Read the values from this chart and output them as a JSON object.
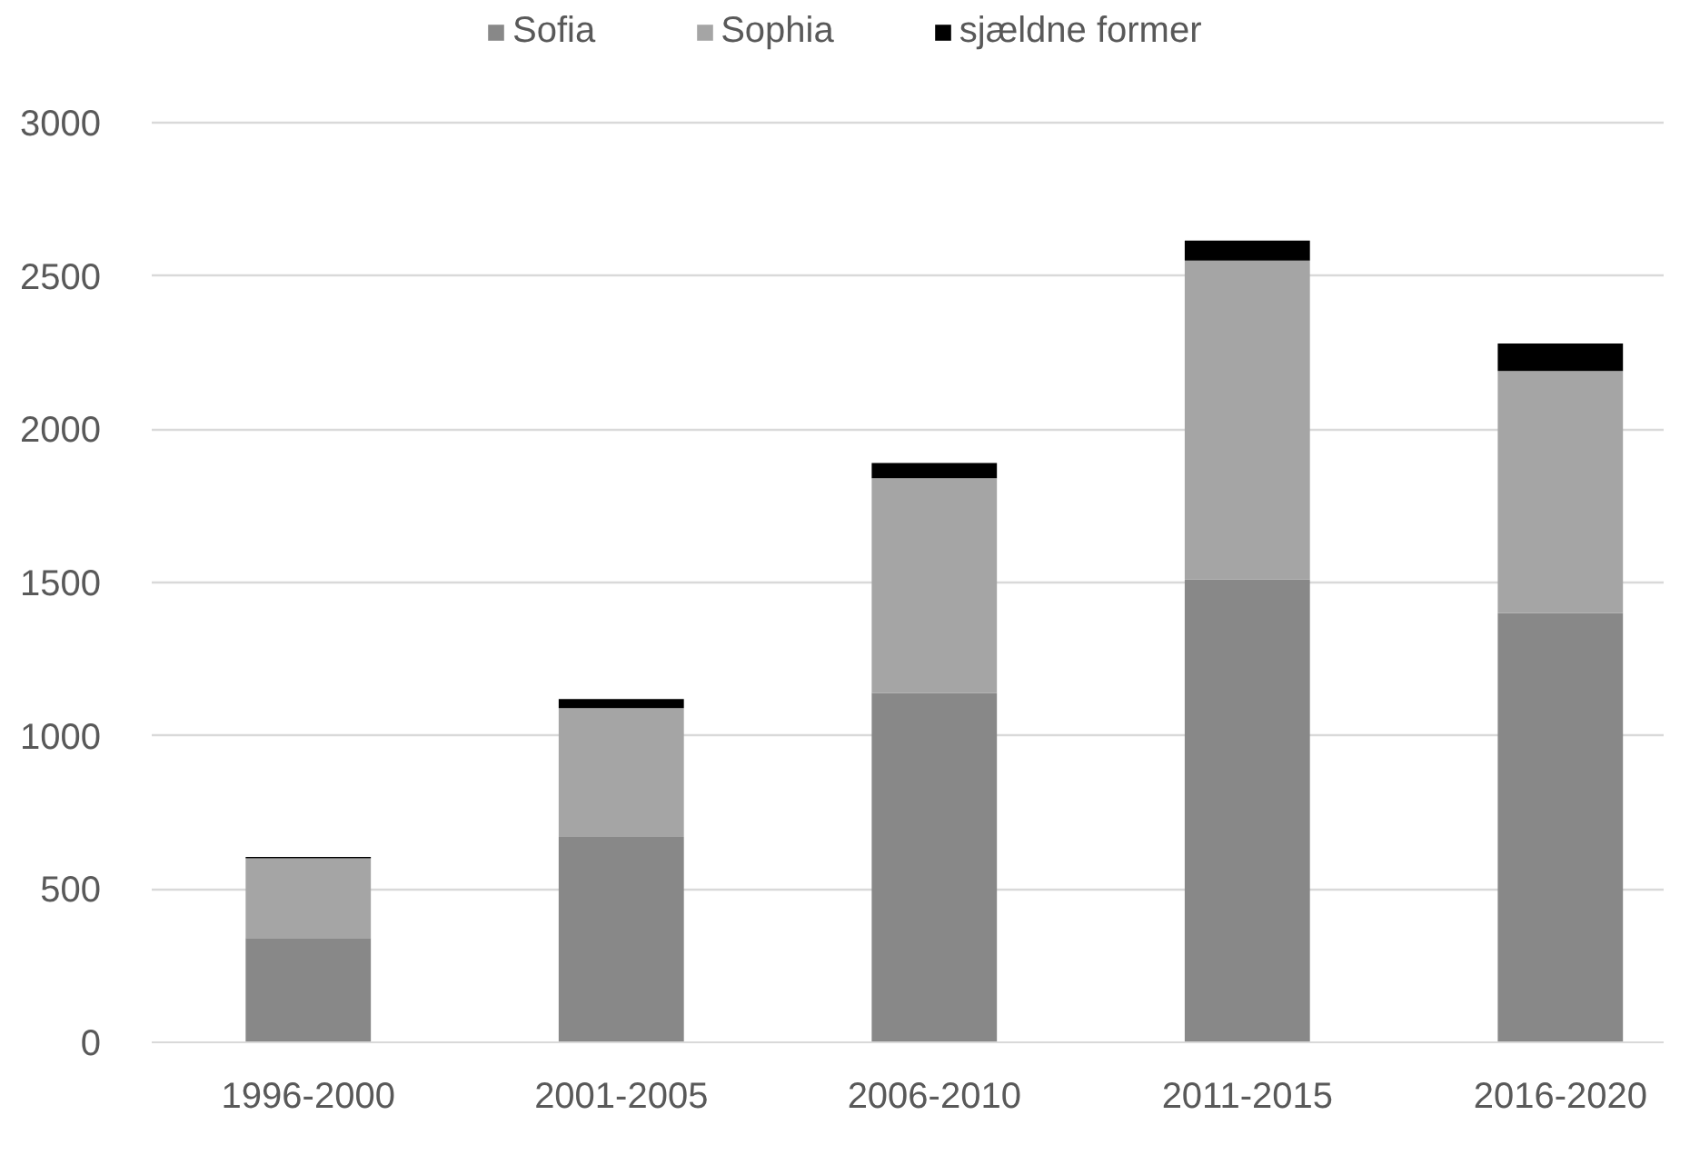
{
  "chart_data": {
    "type": "bar",
    "stacked": true,
    "categories": [
      "1996-2000",
      "2001-2005",
      "2006-2010",
      "2011-2015",
      "2016-2020"
    ],
    "series": [
      {
        "name": "Sofia",
        "color": "#888888",
        "values": [
          340,
          670,
          1140,
          1510,
          1400
        ]
      },
      {
        "name": "Sophia",
        "color": "#a5a5a5",
        "values": [
          260,
          420,
          700,
          1040,
          790
        ]
      },
      {
        "name": "sjældne former",
        "color": "#000000",
        "values": [
          5,
          30,
          50,
          65,
          90
        ]
      }
    ],
    "ylim": [
      0,
      3000
    ],
    "yticks": [
      0,
      500,
      1000,
      1500,
      2000,
      2500,
      3000
    ],
    "grid": "y",
    "legend": "top"
  }
}
